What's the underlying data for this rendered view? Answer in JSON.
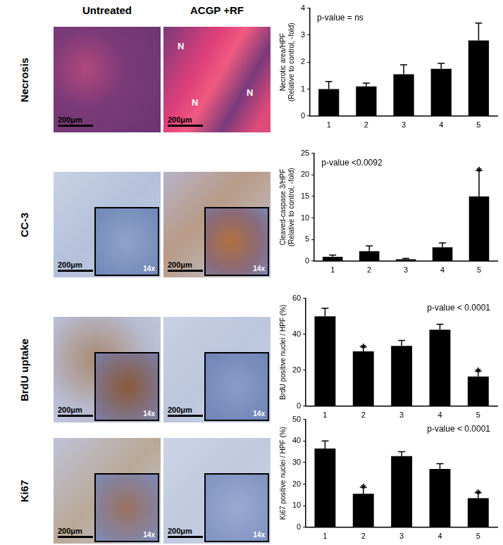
{
  "panel": {
    "column_headers": [
      "Untreated",
      "ACGP +RF"
    ],
    "rows": [
      {
        "label": "Necrosis",
        "images": [
          {
            "scale_bar": "200μm"
          },
          {
            "scale_bar": "200μm",
            "markers": [
              "N",
              "N",
              "N"
            ]
          }
        ]
      },
      {
        "label": "CC-3",
        "images": [
          {
            "scale_bar": "200μm",
            "inset": "14x"
          },
          {
            "scale_bar": "200μm",
            "inset": "14x"
          }
        ]
      },
      {
        "label": "BrdU uptake",
        "images": [
          {
            "scale_bar": "200μm",
            "inset": "14x"
          },
          {
            "scale_bar": "200μm",
            "inset": "14x"
          }
        ]
      },
      {
        "label": "Ki67",
        "images": [
          {
            "scale_bar": "200μm",
            "inset": "14x"
          },
          {
            "scale_bar": "200μm",
            "inset": "14x"
          }
        ]
      }
    ]
  },
  "chart_data": [
    {
      "type": "bar",
      "y_label": [
        "Necrotic area/HPF",
        "(Relative to control, -fold)"
      ],
      "annotation": "p-value = ns",
      "categories": [
        "1",
        "2",
        "3",
        "4",
        "5"
      ],
      "values": [
        1.0,
        1.1,
        1.55,
        1.75,
        2.8
      ],
      "errors": [
        0.28,
        0.12,
        0.35,
        0.2,
        0.65
      ],
      "significance": [
        null,
        null,
        null,
        null,
        null
      ],
      "color": "#000000",
      "ylim": [
        0,
        4
      ],
      "yticks": [
        0,
        1,
        2,
        3,
        4
      ],
      "grid": false
    },
    {
      "type": "bar",
      "y_label": [
        "Cleaved-caspase 3/HPF",
        "(Relative to control, -fold)"
      ],
      "annotation": "p-value <0.0092",
      "categories": [
        "1",
        "2",
        "3",
        "4",
        "5"
      ],
      "values": [
        1.0,
        2.3,
        0.4,
        3.2,
        15.0
      ],
      "errors": [
        0.4,
        1.2,
        0.2,
        1.0,
        6.0
      ],
      "significance": [
        null,
        null,
        null,
        null,
        "*"
      ],
      "color": "#000000",
      "ylim": [
        0,
        25
      ],
      "yticks": [
        0,
        5,
        10,
        15,
        20,
        25
      ],
      "grid": false
    },
    {
      "type": "bar",
      "y_label": [
        "BrdU positive nuclei / HPF (%)"
      ],
      "annotation": "p-value < 0.0001",
      "categories": [
        "1",
        "2",
        "3",
        "4",
        "5"
      ],
      "values": [
        50,
        30.5,
        33.5,
        42.5,
        16.5
      ],
      "errors": [
        4.5,
        2.5,
        3,
        3,
        3
      ],
      "significance": [
        null,
        "*",
        null,
        null,
        "*"
      ],
      "color": "#000000",
      "ylim": [
        0,
        60
      ],
      "yticks": [
        0,
        20,
        40,
        60
      ],
      "grid": false
    },
    {
      "type": "bar",
      "y_label": [
        "Ki67 positive nuclei / HPF (%)"
      ],
      "annotation": "p-value < 0.0001",
      "categories": [
        "1",
        "2",
        "3",
        "4",
        "5"
      ],
      "values": [
        36.5,
        15.5,
        33,
        27,
        13.5
      ],
      "errors": [
        3.5,
        3,
        2,
        2.5,
        2.5
      ],
      "significance": [
        null,
        "*",
        null,
        null,
        "*"
      ],
      "color": "#000000",
      "ylim": [
        0,
        50
      ],
      "yticks": [
        0,
        10,
        20,
        30,
        40,
        50
      ],
      "grid": false
    }
  ]
}
